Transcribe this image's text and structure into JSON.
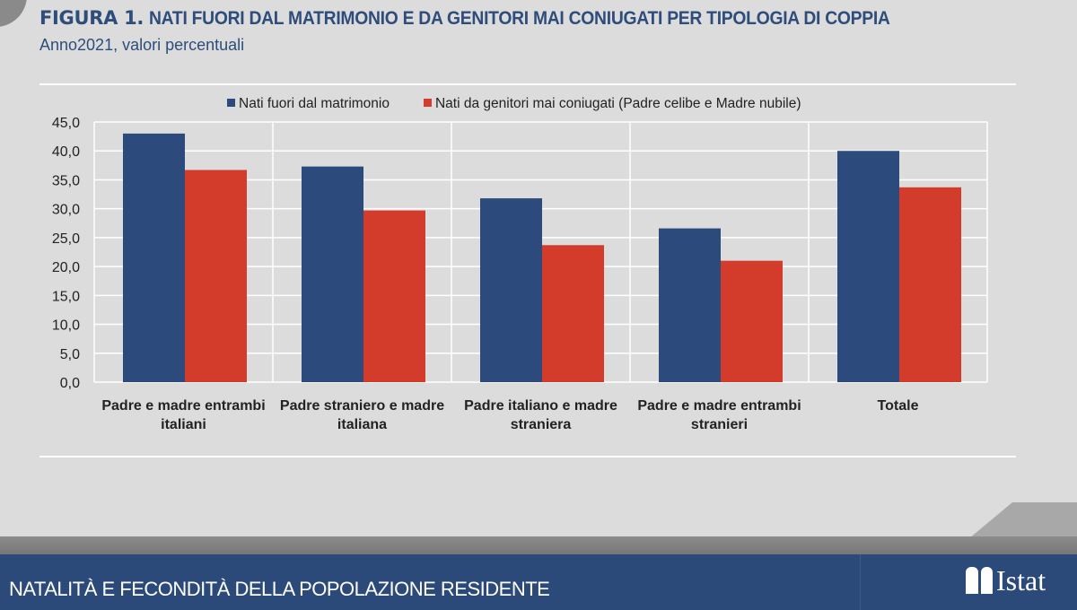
{
  "header": {
    "figure_label": "FIGURA 1.",
    "title": "NATI FUORI DAL MATRIMONIO E DA GENITORI MAI CONIUGATI PER TIPOLOGIA DI COPPIA",
    "subtitle": "Anno2021, valori percentuali"
  },
  "footer": {
    "text": "NATALITÀ E FECONDITÀ DELLA POPOLAZIONE RESIDENTE",
    "logo": "Istat"
  },
  "chart_data": {
    "type": "bar",
    "title": "NATI FUORI DAL MATRIMONIO E DA GENITORI MAI CONIUGATI PER TIPOLOGIA DI COPPIA",
    "subtitle": "Anno2021, valori percentuali",
    "categories": [
      [
        "Padre e madre entrambi",
        "italiani"
      ],
      [
        "Padre straniero e madre",
        "italiana"
      ],
      [
        "Padre italiano e madre",
        "straniera"
      ],
      [
        "Padre e madre entrambi",
        "stranieri"
      ],
      [
        "Totale"
      ]
    ],
    "series": [
      {
        "name": "Nati fuori dal matrimonio",
        "color": "#2c4a7c",
        "values": [
          43.0,
          37.3,
          31.8,
          26.6,
          40.0
        ]
      },
      {
        "name": "Nati da genitori mai coniugati (Padre celibe e Madre nubile)",
        "color": "#d33c2b",
        "values": [
          36.7,
          29.7,
          23.7,
          21.0,
          33.7
        ]
      }
    ],
    "ylim": [
      0,
      45
    ],
    "yticks": [
      "0,0",
      "5,0",
      "10,0",
      "15,0",
      "20,0",
      "25,0",
      "30,0",
      "35,0",
      "40,0",
      "45,0"
    ],
    "grid": true,
    "legend": "top"
  }
}
